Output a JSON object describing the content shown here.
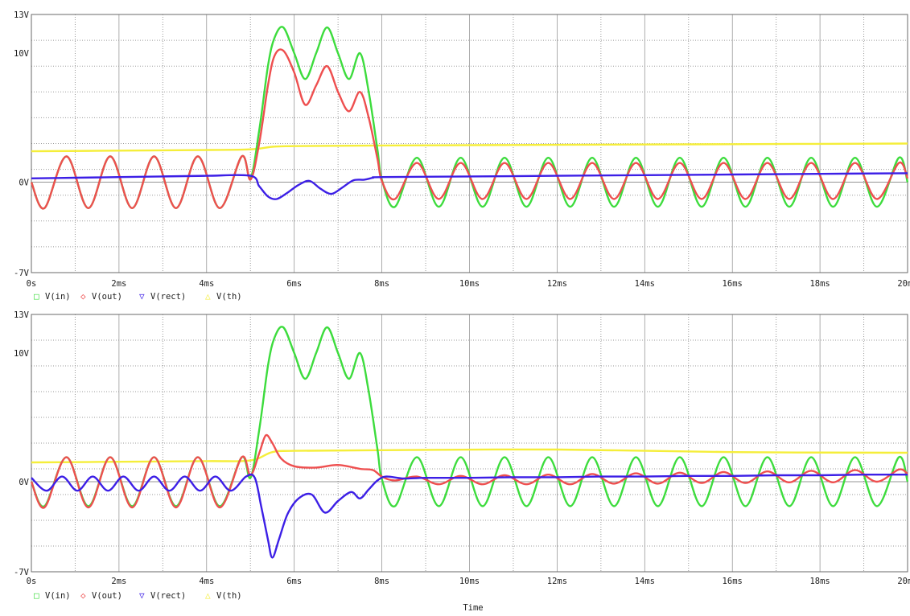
{
  "x_axis_title": "Time",
  "colors": {
    "in": "#3ddc3d",
    "out": "#ee4f4f",
    "rect": "#3c1fe6",
    "th": "#f5ee3a"
  },
  "chart_data": [
    {
      "type": "line",
      "title": "",
      "xlabel": "",
      "ylabel": "",
      "xlim": [
        0,
        20
      ],
      "ylim": [
        -7,
        13
      ],
      "x_ticks": [
        0,
        2,
        4,
        6,
        8,
        10,
        12,
        14,
        16,
        18,
        20
      ],
      "x_tick_labels": [
        "0s",
        "2ms",
        "4ms",
        "6ms",
        "8ms",
        "10ms",
        "12ms",
        "14ms",
        "16ms",
        "18ms",
        "20ms"
      ],
      "y_tick_labels": [
        {
          "value": 13,
          "label": "13V"
        },
        {
          "value": 10,
          "label": "10V"
        },
        {
          "value": 0,
          "label": "0V"
        },
        {
          "value": -7,
          "label": "-7V"
        }
      ],
      "grid": true,
      "legend_position": "bottom-left",
      "x_unit": "ms",
      "y_unit": "V",
      "series": [
        {
          "name": "V(in)",
          "color": "#3ddc3d",
          "symbol": "□",
          "x": [
            0,
            0.3,
            0.8,
            1.3,
            1.8,
            2.3,
            2.8,
            3.3,
            3.8,
            4.3,
            4.8,
            5.0,
            5.2,
            5.4,
            5.55,
            5.75,
            6.0,
            6.25,
            6.5,
            6.75,
            7.0,
            7.25,
            7.5,
            7.7,
            7.9,
            8.0,
            8.3,
            8.8,
            9.3,
            9.8,
            10.3,
            10.8,
            11.3,
            11.8,
            12.3,
            12.8,
            13.3,
            13.8,
            14.3,
            14.8,
            15.3,
            15.8,
            16.3,
            16.8,
            17.3,
            17.8,
            18.3,
            18.8,
            19.3,
            19.8,
            20
          ],
          "y": [
            0,
            -2.0,
            2.0,
            -2.0,
            2.0,
            -2.0,
            2.0,
            -2.0,
            2.0,
            -2.0,
            2.0,
            0.3,
            4.0,
            9.0,
            11.2,
            12.0,
            10.0,
            8.0,
            10.0,
            12.0,
            10.0,
            8.0,
            10.0,
            7.0,
            2.5,
            0.2,
            -1.9,
            1.9,
            -1.9,
            1.9,
            -1.9,
            1.9,
            -1.9,
            1.9,
            -1.9,
            1.9,
            -1.9,
            1.9,
            -1.9,
            1.9,
            -1.9,
            1.9,
            -1.9,
            1.9,
            -1.9,
            1.9,
            -1.9,
            1.9,
            -1.9,
            1.9,
            0
          ]
        },
        {
          "name": "V(out)",
          "color": "#ee4f4f",
          "symbol": "◇",
          "x": [
            0,
            0.3,
            0.8,
            1.3,
            1.8,
            2.3,
            2.8,
            3.3,
            3.8,
            4.3,
            4.8,
            5.0,
            5.2,
            5.4,
            5.55,
            5.75,
            6.0,
            6.25,
            6.5,
            6.75,
            7.0,
            7.25,
            7.5,
            7.7,
            7.9,
            8.0,
            8.3,
            8.8,
            9.3,
            9.8,
            10.3,
            10.8,
            11.3,
            11.8,
            12.3,
            12.8,
            13.3,
            13.8,
            14.3,
            14.8,
            15.3,
            15.8,
            16.3,
            16.8,
            17.3,
            17.8,
            18.3,
            18.8,
            19.3,
            19.8,
            20
          ],
          "y": [
            0,
            -2.0,
            2.0,
            -2.0,
            2.0,
            -2.0,
            2.0,
            -2.0,
            2.0,
            -2.0,
            2.0,
            0.2,
            3.0,
            7.5,
            9.8,
            10.2,
            8.5,
            6.0,
            7.5,
            9.0,
            7.0,
            5.5,
            7.0,
            5.0,
            1.8,
            0.1,
            -1.3,
            1.5,
            -1.3,
            1.5,
            -1.3,
            1.5,
            -1.3,
            1.5,
            -1.3,
            1.5,
            -1.3,
            1.5,
            -1.3,
            1.5,
            -1.3,
            1.5,
            -1.3,
            1.5,
            -1.3,
            1.5,
            -1.3,
            1.5,
            -1.3,
            1.5,
            0.3
          ]
        },
        {
          "name": "V(rect)",
          "color": "#3c1fe6",
          "symbol": "▽",
          "x": [
            0,
            1,
            2,
            3,
            4,
            5.0,
            5.2,
            5.4,
            5.6,
            5.85,
            6.1,
            6.35,
            6.6,
            6.85,
            7.1,
            7.35,
            7.6,
            7.8,
            8.0,
            10,
            12,
            14,
            16,
            18,
            20
          ],
          "y": [
            0.3,
            0.35,
            0.4,
            0.45,
            0.5,
            0.5,
            -0.3,
            -1.1,
            -1.3,
            -0.8,
            -0.2,
            0.1,
            -0.5,
            -0.9,
            -0.4,
            0.15,
            0.2,
            0.35,
            0.4,
            0.45,
            0.5,
            0.55,
            0.6,
            0.65,
            0.7
          ]
        },
        {
          "name": "V(th)",
          "color": "#f5ee3a",
          "symbol": "△",
          "x": [
            0,
            2,
            4,
            5.0,
            5.5,
            6.0,
            8.0,
            12,
            16,
            20
          ],
          "y": [
            2.4,
            2.45,
            2.5,
            2.55,
            2.75,
            2.8,
            2.85,
            2.9,
            2.95,
            3.0
          ]
        }
      ]
    },
    {
      "type": "line",
      "title": "",
      "xlabel": "Time",
      "ylabel": "",
      "xlim": [
        0,
        20
      ],
      "ylim": [
        -7,
        13
      ],
      "x_ticks": [
        0,
        2,
        4,
        6,
        8,
        10,
        12,
        14,
        16,
        18,
        20
      ],
      "x_tick_labels": [
        "0s",
        "2ms",
        "4ms",
        "6ms",
        "8ms",
        "10ms",
        "12ms",
        "14ms",
        "16ms",
        "18ms",
        "20ms"
      ],
      "y_tick_labels": [
        {
          "value": 13,
          "label": "13V"
        },
        {
          "value": 10,
          "label": "10V"
        },
        {
          "value": 0,
          "label": "0V"
        },
        {
          "value": -7,
          "label": "-7V"
        }
      ],
      "grid": true,
      "legend_position": "bottom-left",
      "x_unit": "ms",
      "y_unit": "V",
      "series": [
        {
          "name": "V(in)",
          "color": "#3ddc3d",
          "symbol": "□",
          "x": [
            0,
            0.3,
            0.8,
            1.3,
            1.8,
            2.3,
            2.8,
            3.3,
            3.8,
            4.3,
            4.8,
            5.0,
            5.2,
            5.4,
            5.55,
            5.75,
            6.0,
            6.25,
            6.5,
            6.75,
            7.0,
            7.25,
            7.5,
            7.7,
            7.9,
            8.0,
            8.3,
            8.8,
            9.3,
            9.8,
            10.3,
            10.8,
            11.3,
            11.8,
            12.3,
            12.8,
            13.3,
            13.8,
            14.3,
            14.8,
            15.3,
            15.8,
            16.3,
            16.8,
            17.3,
            17.8,
            18.3,
            18.8,
            19.3,
            19.8,
            20
          ],
          "y": [
            0,
            -1.9,
            1.9,
            -1.9,
            1.9,
            -1.9,
            1.9,
            -1.9,
            1.9,
            -1.9,
            1.9,
            0.3,
            4.0,
            9.0,
            11.2,
            12.0,
            10.0,
            8.0,
            10.0,
            12.0,
            10.0,
            8.0,
            10.0,
            7.0,
            2.5,
            0.2,
            -1.9,
            1.9,
            -1.9,
            1.9,
            -1.9,
            1.9,
            -1.9,
            1.9,
            -1.9,
            1.9,
            -1.9,
            1.9,
            -1.9,
            1.9,
            -1.9,
            1.9,
            -1.9,
            1.9,
            -1.9,
            1.9,
            -1.9,
            1.9,
            -1.9,
            1.9,
            0
          ]
        },
        {
          "name": "V(out)",
          "color": "#ee4f4f",
          "symbol": "◇",
          "x": [
            0,
            0.3,
            0.8,
            1.3,
            1.8,
            2.3,
            2.8,
            3.3,
            3.8,
            4.3,
            4.8,
            5.0,
            5.2,
            5.35,
            5.5,
            5.7,
            6.0,
            6.5,
            7.0,
            7.5,
            7.8,
            8.0,
            8.3,
            8.8,
            9.3,
            9.8,
            10.3,
            10.8,
            11.3,
            11.8,
            12.3,
            12.8,
            13.3,
            13.8,
            14.3,
            14.8,
            15.3,
            15.8,
            16.3,
            16.8,
            17.3,
            17.8,
            18.3,
            18.8,
            19.3,
            19.8,
            20
          ],
          "y": [
            0,
            -2.0,
            1.9,
            -2.0,
            1.9,
            -2.0,
            1.9,
            -2.0,
            1.9,
            -2.0,
            1.9,
            0.5,
            2.2,
            3.6,
            3.0,
            1.8,
            1.2,
            1.1,
            1.3,
            1.0,
            0.9,
            0.4,
            0.1,
            0.4,
            -0.2,
            0.45,
            -0.2,
            0.5,
            -0.2,
            0.55,
            -0.2,
            0.6,
            -0.15,
            0.65,
            -0.15,
            0.7,
            -0.1,
            0.75,
            -0.1,
            0.8,
            -0.05,
            0.85,
            -0.05,
            0.9,
            0.0,
            0.95,
            0.6
          ]
        },
        {
          "name": "V(rect)",
          "color": "#3c1fe6",
          "symbol": "▽",
          "x": [
            0,
            0.35,
            0.7,
            1.05,
            1.4,
            1.75,
            2.1,
            2.45,
            2.8,
            3.15,
            3.5,
            3.85,
            4.2,
            4.55,
            4.9,
            5.1,
            5.25,
            5.4,
            5.5,
            5.65,
            5.85,
            6.1,
            6.4,
            6.7,
            7.0,
            7.3,
            7.5,
            7.7,
            7.9,
            8.1,
            8.5,
            9.0,
            10,
            11,
            12,
            13,
            14,
            15,
            16,
            17,
            18,
            19,
            20
          ],
          "y": [
            0.3,
            -0.7,
            0.4,
            -0.7,
            0.4,
            -0.7,
            0.4,
            -0.7,
            0.4,
            -0.7,
            0.4,
            -0.7,
            0.4,
            -0.7,
            0.4,
            0.3,
            -2.0,
            -4.5,
            -5.9,
            -4.5,
            -2.5,
            -1.3,
            -1.0,
            -2.4,
            -1.5,
            -0.8,
            -1.3,
            -0.6,
            0.1,
            0.4,
            0.25,
            0.3,
            0.3,
            0.35,
            0.35,
            0.4,
            0.4,
            0.45,
            0.45,
            0.5,
            0.5,
            0.55,
            0.55
          ]
        },
        {
          "name": "V(th)",
          "color": "#f5ee3a",
          "symbol": "△",
          "x": [
            0,
            2,
            4,
            5.0,
            5.5,
            6.0,
            8.0,
            12,
            16,
            20
          ],
          "y": [
            1.5,
            1.55,
            1.6,
            1.65,
            2.3,
            2.4,
            2.45,
            2.5,
            2.3,
            2.25
          ]
        }
      ]
    }
  ]
}
